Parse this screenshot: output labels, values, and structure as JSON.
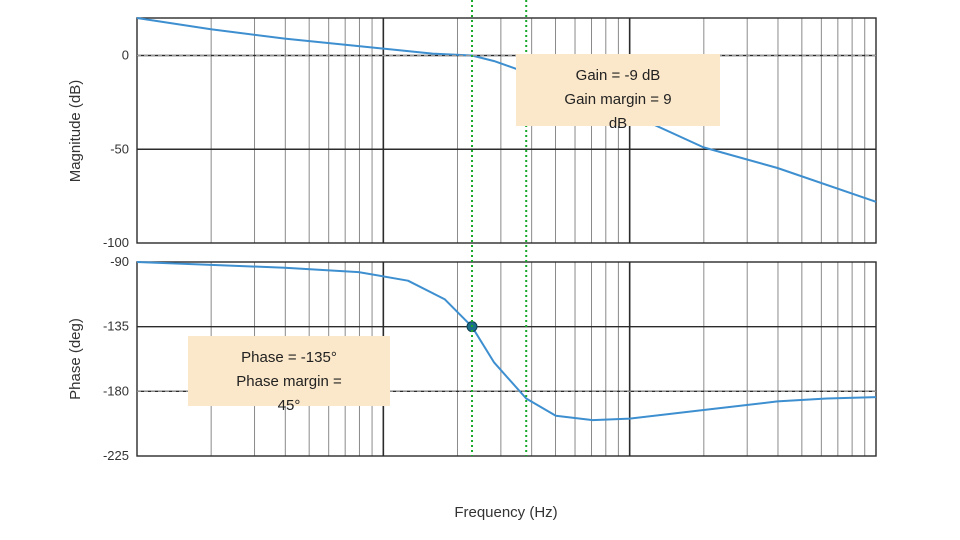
{
  "chart_data": {
    "type": "line",
    "title": "",
    "xlabel": "Frequency  (Hz)",
    "grid": true,
    "colors": {
      "curve": "#3d8fd0",
      "marker": "#1b6f8a",
      "guide": "#1aa82a",
      "annotation_bg": "#fbe7c9",
      "grid_major": "#2b2b2b",
      "grid_minor": "#8a8a8a",
      "reference": "#9a9a9a"
    },
    "decades": 3,
    "crossover_frequency_decades": 1.36,
    "phase_crossover_frequency_decades": 1.58,
    "magnitude": {
      "ylabel": "Magnitude (dB)",
      "ylim": [
        -100,
        20
      ],
      "yticks": [
        0,
        -50,
        -100
      ],
      "ytick_labels": [
        "0",
        "-50",
        "-100"
      ],
      "x": [
        0,
        0.3,
        0.6,
        0.9,
        1.2,
        1.36,
        1.45,
        1.58,
        1.75,
        2.0,
        2.3,
        2.6,
        3.0
      ],
      "y": [
        20,
        14,
        9,
        5,
        1,
        0,
        -3,
        -9,
        -17,
        -31,
        -49,
        -60,
        -78
      ],
      "marker": {
        "x": 1.58,
        "y": -9
      },
      "annotation_lines": [
        "Gain = -9 dB",
        "Gain margin = 9",
        "dB"
      ]
    },
    "phase": {
      "ylabel": "Phase (deg)",
      "ylim": [
        -225,
        -90
      ],
      "yticks": [
        -90,
        -135,
        -180,
        -225
      ],
      "ytick_labels": [
        "-90",
        "-135",
        "-180",
        "-225"
      ],
      "x": [
        0,
        0.3,
        0.6,
        0.9,
        1.1,
        1.25,
        1.36,
        1.45,
        1.58,
        1.7,
        1.85,
        2.0,
        2.3,
        2.6,
        2.8,
        3.0
      ],
      "y": [
        -90,
        -92,
        -94,
        -97,
        -103,
        -116,
        -135,
        -160,
        -185,
        -197,
        -200,
        -199,
        -193,
        -187,
        -185,
        -184
      ],
      "marker": {
        "x": 1.36,
        "y": -135
      },
      "annotation_lines": [
        "Phase = -135°",
        "Phase margin =",
        "45°"
      ]
    }
  }
}
